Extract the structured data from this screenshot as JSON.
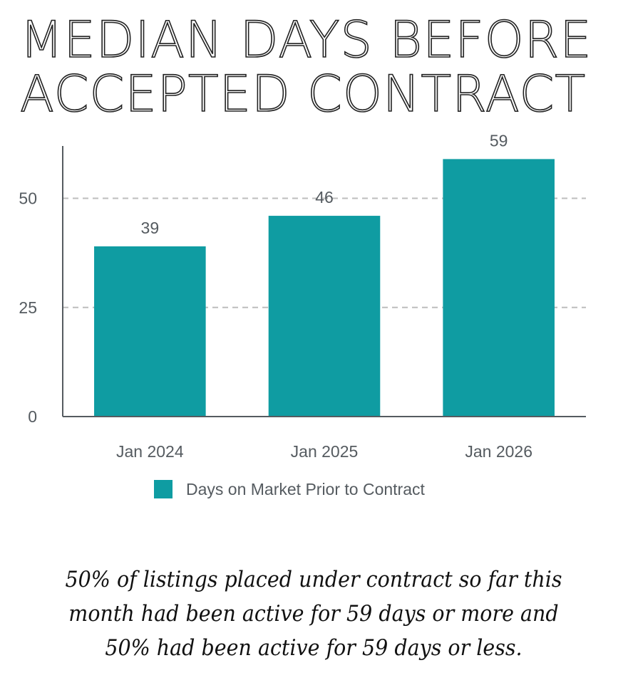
{
  "title": {
    "line1": "MEDIAN DAYS BEFORE",
    "line2": "ACCEPTED CONTRACT"
  },
  "colors": {
    "bar": "#0f9ca2",
    "axis": "#555b60",
    "grid": "#bdbdbd"
  },
  "chart_data": {
    "type": "bar",
    "title": "MEDIAN DAYS BEFORE ACCEPTED CONTRACT",
    "categories": [
      "Jan 2024",
      "Jan 2025",
      "Jan 2026"
    ],
    "series": [
      {
        "name": "Days on Market Prior to Contract",
        "values": [
          39,
          46,
          59
        ]
      }
    ],
    "data_labels": [
      "39",
      "46",
      "59"
    ],
    "ylim": [
      0,
      62
    ],
    "yticks": [
      0,
      25,
      50
    ],
    "xlabel": "",
    "ylabel": "",
    "grid": "horizontal dashed",
    "legend": "bottom"
  },
  "legend": {
    "label": "Days on Market Prior to Contract"
  },
  "note": {
    "line1": "50% of listings placed under contract so far this",
    "line2": "month had been active for 59 days or more and",
    "line3": "50% had been active for 59 days or less."
  }
}
